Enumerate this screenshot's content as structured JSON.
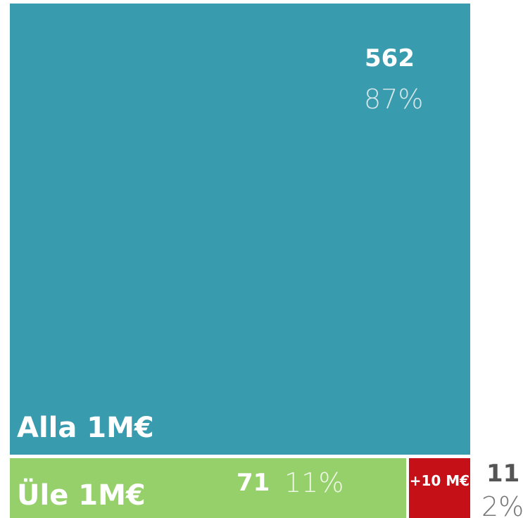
{
  "chart_data": {
    "type": "treemap",
    "categories": [
      "Alla 1M€",
      "Üle 1M€",
      "+10 M€"
    ],
    "values": [
      562,
      71,
      11
    ],
    "shares": [
      87,
      11,
      2
    ],
    "share_labels": [
      "87%",
      "11%",
      "2%"
    ],
    "colors": [
      "#399bae",
      "#95d06b",
      "#c41016"
    ]
  }
}
